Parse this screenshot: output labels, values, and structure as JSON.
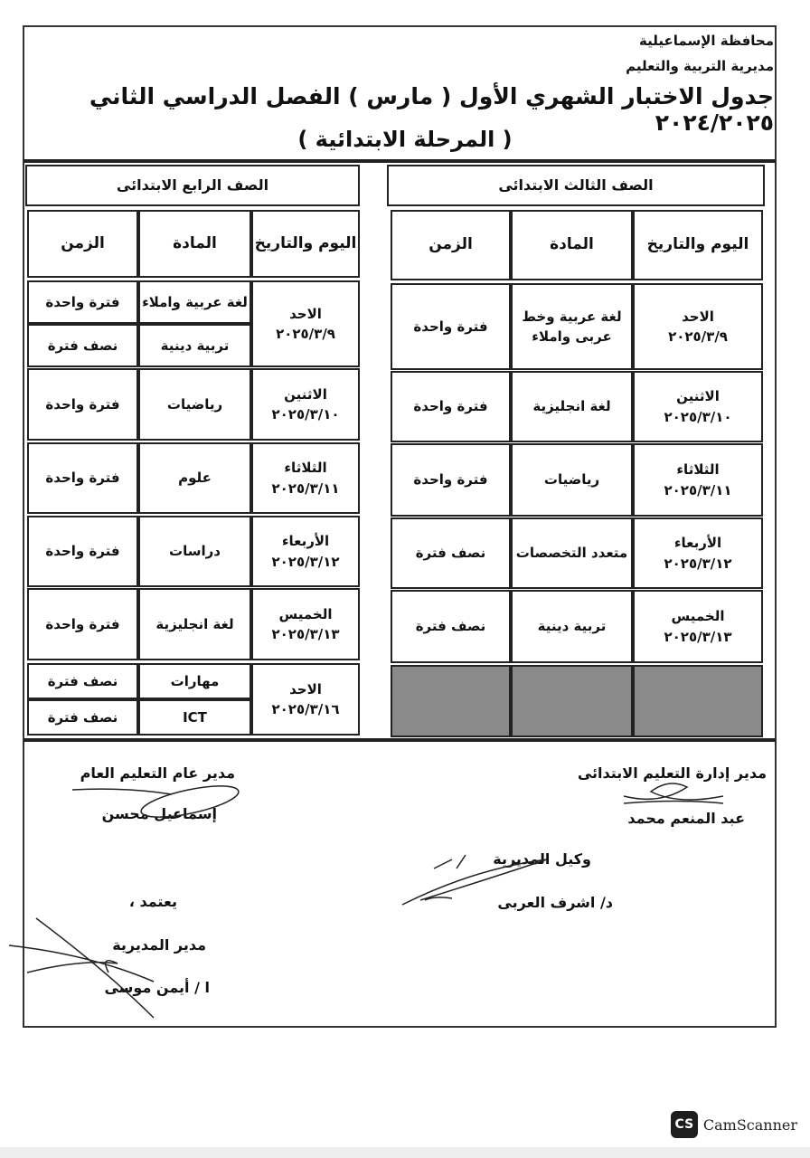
{
  "header": {
    "governorate": "محافظة الإسماعيلية",
    "directorate": "مديرية التربية والتعليم",
    "title": "جدول الاختبار الشهري الأول ( مارس ) الفصل الدراسي الثاني ٢٠٢٤/٢٠٢٥",
    "subtitle": "( المرحلة الابتدائية )"
  },
  "grade3": {
    "title": "الصف الثالث الابتدائى",
    "columns": [
      "اليوم والتاريخ",
      "المادة",
      "الزمن"
    ],
    "rows": [
      {
        "day": "الاحد",
        "date": "٢٠٢٥/٣/٩",
        "subject": "لغة عربية وخط عربى واملاء",
        "time": "فترة واحدة"
      },
      {
        "day": "الاثنين",
        "date": "٢٠٢٥/٣/١٠",
        "subject": "لغة انجليزية",
        "time": "فترة واحدة"
      },
      {
        "day": "الثلاثاء",
        "date": "٢٠٢٥/٣/١١",
        "subject": "رياضيات",
        "time": "فترة واحدة"
      },
      {
        "day": "الأربعاء",
        "date": "٢٠٢٥/٣/١٢",
        "subject": "متعدد التخصصات",
        "time": "نصف فترة"
      },
      {
        "day": "الخميس",
        "date": "٢٠٢٥/٣/١٣",
        "subject": "تربية دينية",
        "time": "نصف فترة"
      }
    ]
  },
  "grade4": {
    "title": "الصف الرابع الابتدائى",
    "columns": [
      "اليوم والتاريخ",
      "المادة",
      "الزمن"
    ],
    "rows": [
      {
        "day": "الاحد",
        "date": "٢٠٢٥/٣/٩",
        "items": [
          {
            "subject": "لغة عربية واملاء",
            "time": "فترة واحدة"
          },
          {
            "subject": "تربية دينية",
            "time": "نصف فترة"
          }
        ]
      },
      {
        "day": "الاثنين",
        "date": "٢٠٢٥/٣/١٠",
        "items": [
          {
            "subject": "رياضيات",
            "time": "فترة واحدة"
          }
        ]
      },
      {
        "day": "الثلاثاء",
        "date": "٢٠٢٥/٣/١١",
        "items": [
          {
            "subject": "علوم",
            "time": "فترة واحدة"
          }
        ]
      },
      {
        "day": "الأربعاء",
        "date": "٢٠٢٥/٣/١٢",
        "items": [
          {
            "subject": "دراسات",
            "time": "فترة واحدة"
          }
        ]
      },
      {
        "day": "الخميس",
        "date": "٢٠٢٥/٣/١٣",
        "items": [
          {
            "subject": "لغة انجليزية",
            "time": "فترة واحدة"
          }
        ]
      },
      {
        "day": "الاحد",
        "date": "٢٠٢٥/٣/١٦",
        "items": [
          {
            "subject": "مهارات",
            "time": "نصف فترة"
          },
          {
            "subject": "ICT",
            "time": "نصف فترة"
          }
        ]
      }
    ]
  },
  "signatures": {
    "primary_director_title": "مدير إدارة التعليم الابتدائى",
    "primary_director_name": "عبد المنعم محمد",
    "general_director_title": "مدير عام التعليم العام",
    "general_director_name": "إسماعيل محسن",
    "deputy_title": "وكيل المديرية",
    "deputy_name": "د/ اشرف العربى",
    "approve": "يعتمد ،",
    "directorate_head_title": "مدير المديرية",
    "directorate_head_name": "ا / أيمن موسى"
  },
  "watermark": {
    "logo": "CS",
    "text": "CamScanner"
  }
}
